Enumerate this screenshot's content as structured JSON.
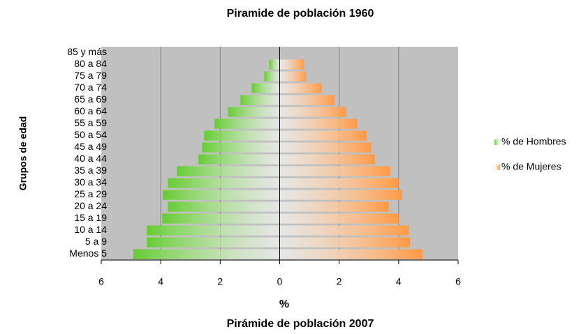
{
  "chart_data": {
    "type": "pyramid",
    "title": "Piramide de población 1960",
    "subtitle": "Pirámide de población 2007",
    "x_label": "%",
    "y_label": "Grupos de edad",
    "categories": [
      "Menos 5",
      "5 a 9",
      "10 a 14",
      "15 a 19",
      "20 a 24",
      "25 a 29",
      "30 a 34",
      "35 a 39",
      "40 a 44",
      "45 a 49",
      "50 a 54",
      "55 a 59",
      "60 a 64",
      "65 a 69",
      "70 a 74",
      "75 a 79",
      "80 a 84",
      "85 y más"
    ],
    "series": [
      {
        "name": "% de Hombres",
        "color": "#66cc33",
        "values": [
          -4.92,
          -4.47,
          -4.47,
          -3.95,
          -3.76,
          -3.93,
          -3.76,
          -3.46,
          -2.73,
          -2.61,
          -2.54,
          -2.19,
          -1.74,
          -1.32,
          -0.94,
          -0.52,
          -0.35,
          0
        ]
      },
      {
        "name": "% de Mujeres",
        "color": "#ff9944",
        "values": [
          4.8,
          4.38,
          4.35,
          4.0,
          3.67,
          4.12,
          4.0,
          3.72,
          3.2,
          3.08,
          2.92,
          2.61,
          2.24,
          1.84,
          1.41,
          0.89,
          0.82,
          0
        ]
      }
    ],
    "xlim": [
      -6,
      6
    ],
    "xticks": [
      {
        "value": -6,
        "label": "6"
      },
      {
        "value": -4,
        "label": "4"
      },
      {
        "value": -2,
        "label": "2"
      },
      0,
      2,
      4,
      6
    ],
    "grid": true,
    "plot_color": "#c0c0c0",
    "legend": "right"
  }
}
